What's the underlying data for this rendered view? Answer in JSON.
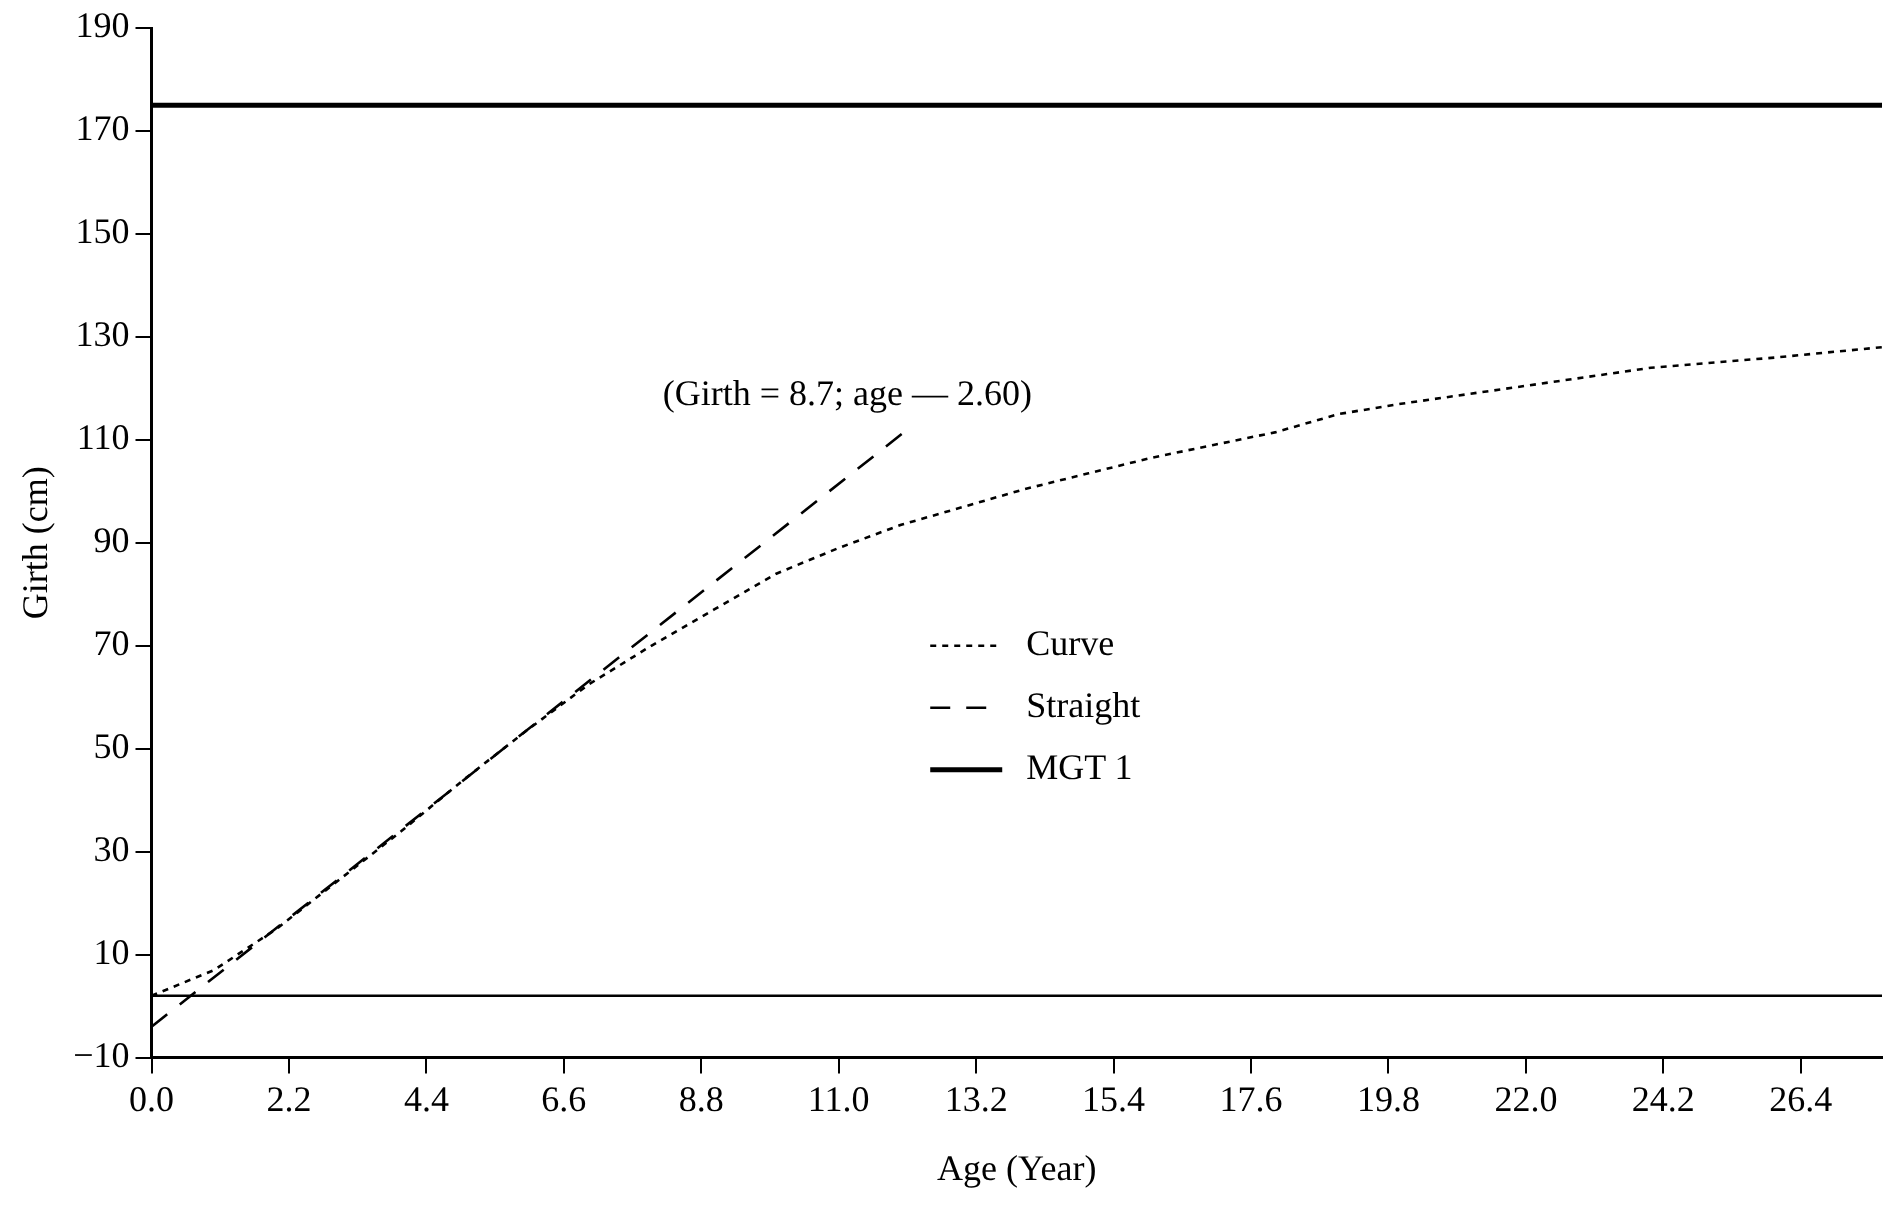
{
  "chart_data": {
    "type": "line",
    "xlabel": "Age (Year)",
    "ylabel": "Girth (cm)",
    "xlim": [
      0,
      27.7
    ],
    "xticks": [
      {
        "value": 0,
        "label": "0.0"
      },
      {
        "value": 2.2,
        "label": "2.2"
      },
      {
        "value": 4.4,
        "label": "4.4"
      },
      {
        "value": 6.6,
        "label": "6.6"
      },
      {
        "value": 8.8,
        "label": "8.8"
      },
      {
        "value": 11,
        "label": "11.0"
      },
      {
        "value": 13.2,
        "label": "13.2"
      },
      {
        "value": 15.4,
        "label": "15.4"
      },
      {
        "value": 17.6,
        "label": "17.6"
      },
      {
        "value": 19.8,
        "label": "19.8"
      },
      {
        "value": 22,
        "label": "22.0"
      },
      {
        "value": 24.2,
        "label": "24.2"
      },
      {
        "value": 26.4,
        "label": "26.4"
      }
    ],
    "ylim": [
      -10,
      190
    ],
    "yticks": [
      -10,
      10,
      30,
      50,
      70,
      90,
      110,
      130,
      150,
      170,
      190
    ],
    "legend": "center",
    "marker": "none",
    "series": [
      {
        "name": "Curve",
        "color": "#000000",
        "line_style": "dotted",
        "x": [
          0,
          1,
          2,
          3,
          4,
          5,
          6,
          7,
          8,
          9,
          10,
          11,
          12,
          13,
          14,
          15,
          16,
          17,
          18,
          19,
          20,
          22,
          24,
          26,
          27.7
        ],
        "values": [
          2,
          7,
          15,
          24.5,
          34,
          44,
          53.5,
          62.5,
          70,
          77,
          84,
          89,
          93.5,
          97,
          100.5,
          103.5,
          106.5,
          109,
          111.5,
          115,
          117,
          120.5,
          124,
          126,
          128
        ]
      },
      {
        "name": "Straight",
        "color": "#000000",
        "line_style": "dashed",
        "x": [
          0,
          12.1
        ],
        "values": [
          -4,
          112
        ]
      },
      {
        "name": "MGT 1",
        "color": "#000000",
        "line_style": "solid",
        "x": [
          0,
          27.7
        ],
        "values": [
          175,
          175
        ]
      }
    ],
    "ref_lines": [
      {
        "axis": "y",
        "value": 2,
        "color": "#000000"
      }
    ],
    "annotations": [
      {
        "text": "(Girth = 8.7; age — 2.60)",
        "x": 12.1,
        "y": 112
      }
    ]
  }
}
